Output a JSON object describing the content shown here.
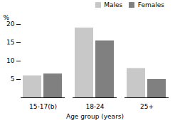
{
  "chart_data": {
    "type": "bar",
    "categories": [
      "15-17(b)",
      "18-24",
      "25+"
    ],
    "series": [
      {
        "name": "Males",
        "color": "#c8c8c8",
        "values": [
          6.0,
          19.0,
          8.0
        ]
      },
      {
        "name": "Females",
        "color": "#808080",
        "values": [
          6.5,
          15.5,
          5.0
        ]
      }
    ],
    "xlabel": "Age group (years)",
    "ylabel": "%",
    "ylim": [
      0,
      20
    ],
    "yticks": [
      5,
      10,
      15,
      20
    ],
    "grid": false,
    "legend": "upper right"
  }
}
